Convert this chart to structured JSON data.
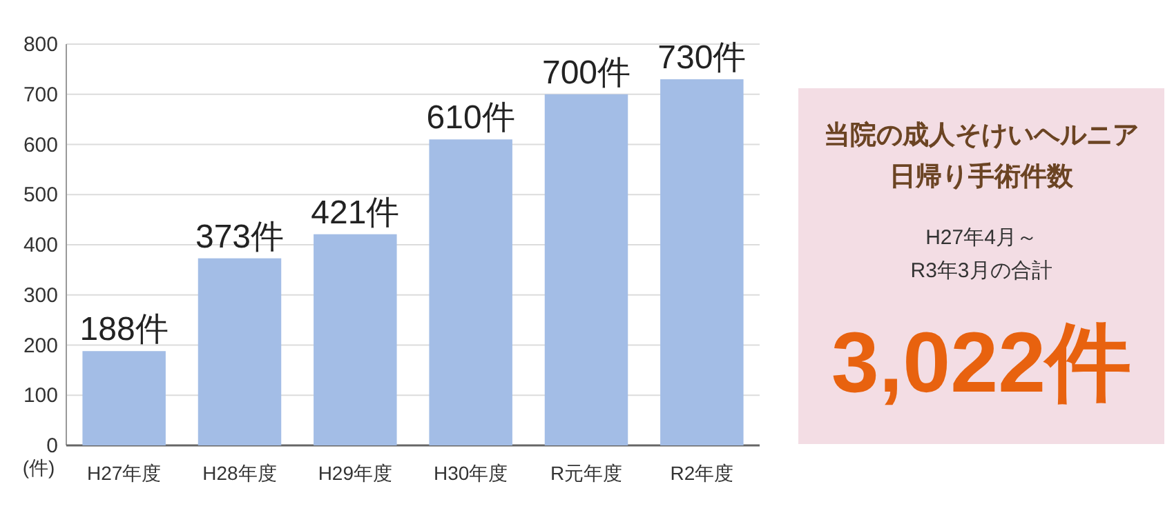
{
  "chart_data": [
    {
      "type": "bar",
      "categories": [
        "H27年度",
        "H28年度",
        "H29年度",
        "H30年度",
        "R元年度",
        "R2年度"
      ],
      "values": [
        188,
        373,
        421,
        610,
        700,
        730
      ],
      "value_labels": [
        "188件",
        "373件",
        "421件",
        "610件",
        "700件",
        "730件"
      ],
      "color": "#a3bde6",
      "ylabel": "(件)",
      "ylim": [
        0,
        800
      ],
      "yticks": [
        0,
        100,
        200,
        300,
        400,
        500,
        600,
        700,
        800
      ],
      "grid": "y"
    },
    {
      "type": "other",
      "title": "当院の成人そけいヘルニア日帰り手術件数",
      "subtitle": "H27年4月～R3年3月の合計",
      "annotations": [
        "3,022件"
      ]
    }
  ]
}
